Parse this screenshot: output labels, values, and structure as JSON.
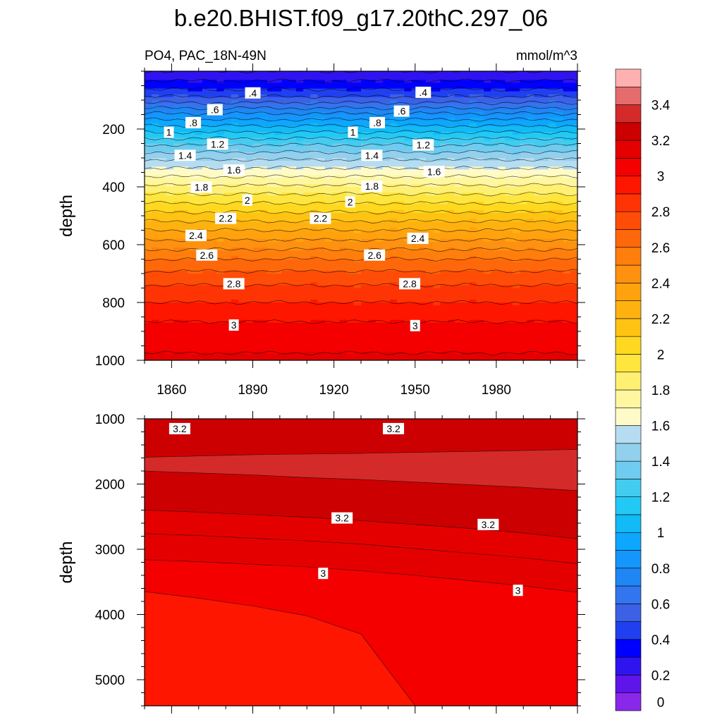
{
  "chart_data": {
    "type": "heatmap",
    "title": "b.e20.BHIST.f09_g17.20thC.297_06",
    "subtitle_left": "PO4, PAC_18N-49N",
    "subtitle_right": "mmol/m^3",
    "ylabel": "depth",
    "xlabel": "",
    "xlim": [
      1850,
      2010
    ],
    "x_ticks": [
      "1860",
      "1890",
      "1920",
      "1950",
      "1980"
    ],
    "x_tick_values": [
      1860,
      1890,
      1920,
      1950,
      1980
    ],
    "colorbar": {
      "levels": [
        0,
        0.1,
        0.2,
        0.3,
        0.4,
        0.5,
        0.6,
        0.7,
        0.8,
        0.9,
        1.0,
        1.1,
        1.2,
        1.3,
        1.4,
        1.5,
        1.6,
        1.7,
        1.8,
        1.9,
        2.0,
        2.1,
        2.2,
        2.3,
        2.4,
        2.5,
        2.6,
        2.7,
        2.8,
        2.9,
        3.0,
        3.1,
        3.2,
        3.3,
        3.4,
        3.5
      ],
      "labels": [
        "0",
        "0.2",
        "0.4",
        "0.6",
        "0.8",
        "1",
        "1.2",
        "1.4",
        "1.6",
        "1.8",
        "2",
        "2.2",
        "2.4",
        "2.6",
        "2.8",
        "3",
        "3.2",
        "3.4"
      ],
      "label_values": [
        0,
        0.2,
        0.4,
        0.6,
        0.8,
        1.0,
        1.2,
        1.4,
        1.6,
        1.8,
        2.0,
        2.2,
        2.4,
        2.6,
        2.8,
        3.0,
        3.2,
        3.4
      ],
      "colors": [
        "#8a28ea",
        "#5f14ea",
        "#3014f0",
        "#0000fe",
        "#2040f0",
        "#3c60e6",
        "#3275ee",
        "#1f86f4",
        "#1496fc",
        "#0da7fe",
        "#12baf6",
        "#22c9f5",
        "#44cbf0",
        "#6fcbef",
        "#92d0ed",
        "#b6dcf1",
        "#fffbc8",
        "#fff7a0",
        "#fff074",
        "#ffe63e",
        "#ffd81f",
        "#ffc313",
        "#ffb20f",
        "#ffa20e",
        "#ff9110",
        "#ff7e0c",
        "#ff680a",
        "#ff4d07",
        "#ff3404",
        "#ff1600",
        "#f40000",
        "#e50000",
        "#cc0000",
        "#d52a2a",
        "#e46c6c",
        "#ffb0b0"
      ]
    },
    "panels": [
      {
        "name": "upper",
        "ylim": [
          0,
          1000
        ],
        "y_ticks": [
          "200",
          "400",
          "600",
          "800",
          "1000"
        ],
        "y_tick_values": [
          200,
          400,
          600,
          800,
          1000
        ],
        "depth_profile": {
          "depth": [
            0,
            50,
            100,
            150,
            200,
            250,
            300,
            350,
            400,
            450,
            500,
            550,
            600,
            650,
            700,
            750,
            800,
            850,
            900,
            950,
            1000
          ],
          "po4": [
            0.2,
            0.35,
            0.55,
            0.82,
            1.05,
            1.28,
            1.48,
            1.65,
            1.82,
            1.98,
            2.14,
            2.3,
            2.45,
            2.6,
            2.72,
            2.82,
            2.9,
            2.98,
            3.04,
            3.08,
            3.12
          ]
        },
        "contour_labels": [
          {
            "text": ".4",
            "year": 1890,
            "depth": 75
          },
          {
            "text": ".4",
            "year": 1953,
            "depth": 73
          },
          {
            "text": ".6",
            "year": 1876,
            "depth": 133
          },
          {
            "text": ".6",
            "year": 1945,
            "depth": 138
          },
          {
            "text": ".8",
            "year": 1868,
            "depth": 178
          },
          {
            "text": ".8",
            "year": 1936,
            "depth": 178
          },
          {
            "text": "1",
            "year": 1859,
            "depth": 211
          },
          {
            "text": "1",
            "year": 1927,
            "depth": 211
          },
          {
            "text": "1.2",
            "year": 1877,
            "depth": 252
          },
          {
            "text": "1.2",
            "year": 1953,
            "depth": 255
          },
          {
            "text": "1.4",
            "year": 1865,
            "depth": 291
          },
          {
            "text": "1.4",
            "year": 1934,
            "depth": 291
          },
          {
            "text": "1.6",
            "year": 1883,
            "depth": 342
          },
          {
            "text": "1.6",
            "year": 1957,
            "depth": 347
          },
          {
            "text": "1.8",
            "year": 1871,
            "depth": 401
          },
          {
            "text": "1.8",
            "year": 1934,
            "depth": 398
          },
          {
            "text": "2",
            "year": 1888,
            "depth": 446
          },
          {
            "text": "2",
            "year": 1926,
            "depth": 452
          },
          {
            "text": "2.2",
            "year": 1880,
            "depth": 509
          },
          {
            "text": "2.2",
            "year": 1915,
            "depth": 509
          },
          {
            "text": "2.4",
            "year": 1869,
            "depth": 568
          },
          {
            "text": "2.4",
            "year": 1951,
            "depth": 578
          },
          {
            "text": "2.6",
            "year": 1873,
            "depth": 636
          },
          {
            "text": "2.6",
            "year": 1935,
            "depth": 636
          },
          {
            "text": "2.8",
            "year": 1883,
            "depth": 735
          },
          {
            "text": "2.8",
            "year": 1948,
            "depth": 735
          },
          {
            "text": "3",
            "year": 1883,
            "depth": 878
          },
          {
            "text": "3",
            "year": 1950,
            "depth": 880
          }
        ]
      },
      {
        "name": "lower",
        "ylim": [
          1000,
          5400
        ],
        "y_ticks": [
          "1000",
          "2000",
          "3000",
          "4000",
          "5000"
        ],
        "y_tick_values": [
          1000,
          2000,
          3000,
          4000,
          5000
        ],
        "contour_labels": [
          {
            "text": "3.2",
            "year": 1863,
            "depth": 1150
          },
          {
            "text": "3.2",
            "year": 1942,
            "depth": 1150
          },
          {
            "text": "3.2",
            "year": 1923,
            "depth": 2520
          },
          {
            "text": "3.2",
            "year": 1977,
            "depth": 2620
          },
          {
            "text": "3",
            "year": 1916,
            "depth": 3370
          },
          {
            "text": "3",
            "year": 1988,
            "depth": 3630
          }
        ]
      }
    ]
  }
}
